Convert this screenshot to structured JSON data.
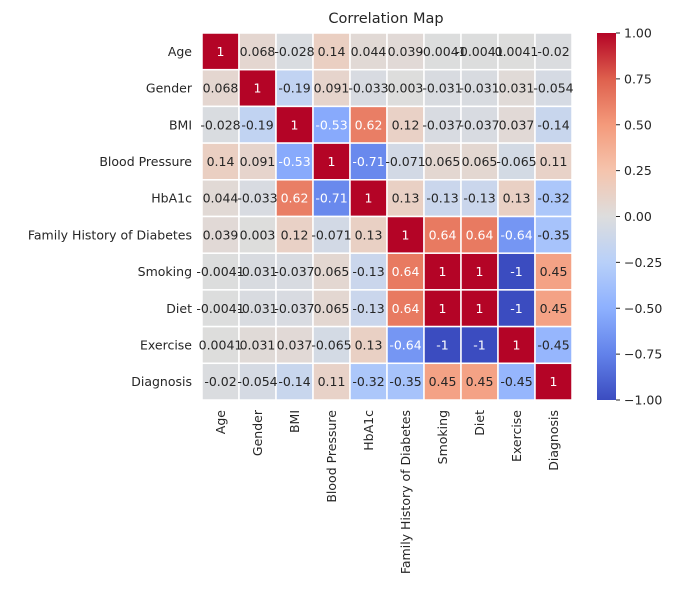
{
  "chart_data": {
    "type": "heatmap",
    "title": "Correlation Map",
    "labels": [
      "Age",
      "Gender",
      "BMI",
      "Blood Pressure",
      "HbA1c",
      "Family History of Diabetes",
      "Smoking",
      "Diet",
      "Exercise",
      "Diagnosis"
    ],
    "matrix": [
      [
        1,
        0.068,
        -0.028,
        0.14,
        0.044,
        0.039,
        -0.0041,
        -0.0041,
        0.0041,
        -0.02
      ],
      [
        0.068,
        1,
        -0.19,
        0.091,
        -0.033,
        0.003,
        -0.031,
        -0.031,
        0.031,
        -0.054
      ],
      [
        -0.028,
        -0.19,
        1,
        -0.53,
        0.62,
        0.12,
        -0.037,
        -0.037,
        0.037,
        -0.14
      ],
      [
        0.14,
        0.091,
        -0.53,
        1,
        -0.71,
        -0.071,
        0.065,
        0.065,
        -0.065,
        0.11
      ],
      [
        0.044,
        -0.033,
        0.62,
        -0.71,
        1,
        0.13,
        -0.13,
        -0.13,
        0.13,
        -0.32
      ],
      [
        0.039,
        0.003,
        0.12,
        -0.071,
        0.13,
        1,
        0.64,
        0.64,
        -0.64,
        -0.35
      ],
      [
        -0.0041,
        -0.031,
        -0.037,
        0.065,
        -0.13,
        0.64,
        1,
        1,
        -1,
        0.45
      ],
      [
        -0.0041,
        -0.031,
        -0.037,
        0.065,
        -0.13,
        0.64,
        1,
        1,
        -1,
        0.45
      ],
      [
        0.0041,
        0.031,
        0.037,
        -0.065,
        0.13,
        -0.64,
        -1,
        -1,
        1,
        -0.45
      ],
      [
        -0.02,
        -0.054,
        -0.14,
        0.11,
        -0.32,
        -0.35,
        0.45,
        0.45,
        -0.45,
        1
      ]
    ],
    "cell_labels": [
      [
        "1",
        "0.068",
        "-0.028",
        "0.14",
        "0.044",
        "0.039",
        "-0.0041",
        "-0.0041",
        "0.0041",
        "-0.02"
      ],
      [
        "0.068",
        "1",
        "-0.19",
        "0.091",
        "-0.033",
        "0.003",
        "-0.031",
        "-0.031",
        "0.031",
        "-0.054"
      ],
      [
        "-0.028",
        "-0.19",
        "1",
        "-0.53",
        "0.62",
        "0.12",
        "-0.037",
        "-0.037",
        "0.037",
        "-0.14"
      ],
      [
        "0.14",
        "0.091",
        "-0.53",
        "1",
        "-0.71",
        "-0.071",
        "0.065",
        "0.065",
        "-0.065",
        "0.11"
      ],
      [
        "0.044",
        "-0.033",
        "0.62",
        "-0.71",
        "1",
        "0.13",
        "-0.13",
        "-0.13",
        "0.13",
        "-0.32"
      ],
      [
        "0.039",
        "0.003",
        "0.12",
        "-0.071",
        "0.13",
        "1",
        "0.64",
        "0.64",
        "-0.64",
        "-0.35"
      ],
      [
        "-0.0041",
        "-0.031",
        "-0.037",
        "0.065",
        "-0.13",
        "0.64",
        "1",
        "1",
        "-1",
        "0.45"
      ],
      [
        "-0.0041",
        "-0.031",
        "-0.037",
        "0.065",
        "-0.13",
        "0.64",
        "1",
        "1",
        "-1",
        "0.45"
      ],
      [
        "0.0041",
        "0.031",
        "0.037",
        "-0.065",
        "0.13",
        "-0.64",
        "-1",
        "-1",
        "1",
        "-0.45"
      ],
      [
        "-0.02",
        "-0.054",
        "-0.14",
        "0.11",
        "-0.32",
        "-0.35",
        "0.45",
        "0.45",
        "-0.45",
        "1"
      ]
    ],
    "colorbar": {
      "min": -1,
      "max": 1,
      "ticks": [
        1.0,
        0.75,
        0.5,
        0.25,
        0.0,
        -0.25,
        -0.5,
        -0.75,
        -1.0
      ],
      "tick_labels": [
        "1.00",
        "0.75",
        "0.50",
        "0.25",
        "0.00",
        "−0.25",
        "−0.50",
        "−0.75",
        "−1.00"
      ]
    },
    "colormap": "coolwarm",
    "grid": true
  }
}
